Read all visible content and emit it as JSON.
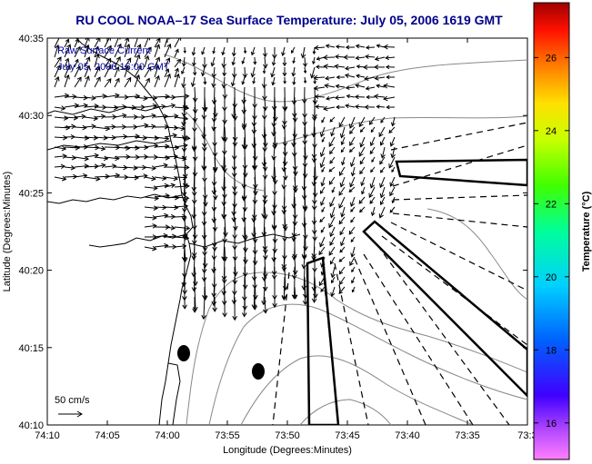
{
  "chart_data": {
    "type": "quiver",
    "title": "RU COOL  NOAA–17  Sea Surface Temperature:  July 05, 2006 1619 GMT",
    "xlabel": "Longitude (Degrees:Minutes)",
    "ylabel": "Latitude (Degrees:Minutes)",
    "x_ticks": [
      "74:10",
      "74:05",
      "74:00",
      "73:55",
      "73:50",
      "73:45",
      "73:40",
      "73:35",
      "73:3"
    ],
    "y_ticks": [
      "40:10",
      "40:15",
      "40:20",
      "40:25",
      "40:30",
      "40:35"
    ],
    "annotation_lines": [
      "Raw Surface Current",
      "July 05, 2006 16:00 GMT"
    ],
    "scale_label": "50 cm/s",
    "colorbar": {
      "label": "Temperature (°C)",
      "ticks": [
        "16",
        "18",
        "20",
        "22",
        "24",
        "26"
      ],
      "range": [
        15,
        27.5
      ]
    },
    "grid": false,
    "colors": {
      "title": "#00008b",
      "annotation": "#0000a0",
      "arrows": "#000000",
      "coastline": "#000000",
      "isobaths": "#808080"
    }
  }
}
